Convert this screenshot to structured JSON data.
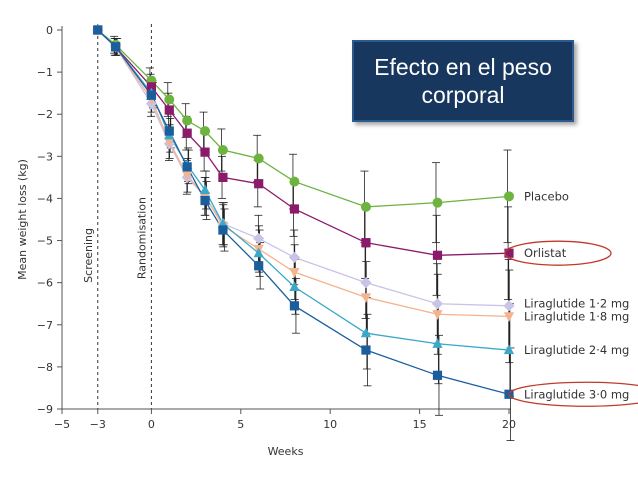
{
  "chart_data": {
    "type": "line",
    "title": "Efecto en el peso corporal",
    "xlabel": "Weeks",
    "ylabel": "Mean weight loss (kg)",
    "xlim": [
      -5,
      20
    ],
    "ylim": [
      -9,
      0
    ],
    "x_ticks": [
      -5,
      -3,
      0,
      5,
      10,
      15,
      20
    ],
    "y_ticks": [
      0,
      -1,
      -2,
      -3,
      -4,
      -5,
      -6,
      -7,
      -8,
      -9
    ],
    "phase_labels": [
      {
        "label": "Screening",
        "x": -3
      },
      {
        "label": "Randomisation",
        "x": 0
      }
    ],
    "highlighted_series": [
      "Orlistat",
      "Liraglutide 3·0 mg"
    ],
    "series": [
      {
        "name": "Placebo",
        "color": "#6cb33f",
        "marker": "circle",
        "x": [
          -3,
          -2,
          0,
          1,
          2,
          3,
          4,
          6,
          8,
          12,
          16,
          20
        ],
        "y": [
          0,
          -0.35,
          -1.2,
          -1.65,
          -2.15,
          -2.4,
          -2.85,
          -3.05,
          -3.6,
          -4.2,
          -4.1,
          -3.95
        ]
      },
      {
        "name": "Orlistat",
        "color": "#8b1a6b",
        "marker": "square",
        "x": [
          -3,
          -2,
          0,
          1,
          2,
          3,
          4,
          6,
          8,
          12,
          16,
          20
        ],
        "y": [
          0,
          -0.4,
          -1.35,
          -1.9,
          -2.45,
          -2.9,
          -3.5,
          -3.65,
          -4.25,
          -5.05,
          -5.35,
          -5.3
        ]
      },
      {
        "name": "Liraglutide 1·2 mg",
        "color": "#c9c3e6",
        "marker": "diamond",
        "x": [
          -3,
          -2,
          0,
          1,
          2,
          3,
          4,
          6,
          8,
          12,
          16,
          20
        ],
        "y": [
          0,
          -0.4,
          -1.75,
          -2.7,
          -3.5,
          -3.95,
          -4.6,
          -4.95,
          -5.4,
          -6.0,
          -6.5,
          -6.55
        ]
      },
      {
        "name": "Liraglutide 1·8 mg",
        "color": "#f3b48e",
        "marker": "triangle-down",
        "x": [
          -3,
          -2,
          0,
          1,
          2,
          3,
          4,
          6,
          8,
          12,
          16,
          20
        ],
        "y": [
          0,
          -0.4,
          -1.65,
          -2.65,
          -3.45,
          -3.95,
          -4.65,
          -5.2,
          -5.75,
          -6.35,
          -6.75,
          -6.8
        ]
      },
      {
        "name": "Liraglutide 2·4 mg",
        "color": "#3ba8c8",
        "marker": "triangle-up",
        "x": [
          -3,
          -2,
          0,
          1,
          2,
          3,
          4,
          6,
          8,
          12,
          16,
          20
        ],
        "y": [
          0,
          -0.4,
          -1.5,
          -2.5,
          -3.2,
          -3.8,
          -4.6,
          -5.3,
          -6.1,
          -7.2,
          -7.45,
          -7.6
        ]
      },
      {
        "name": "Liraglutide 3·0 mg",
        "color": "#1a5e9e",
        "marker": "square",
        "x": [
          -3,
          -2,
          0,
          1,
          2,
          3,
          4,
          6,
          8,
          12,
          16,
          20
        ],
        "y": [
          0,
          -0.4,
          -1.55,
          -2.4,
          -3.25,
          -4.05,
          -4.75,
          -5.6,
          -6.55,
          -7.6,
          -8.2,
          -8.65
        ]
      }
    ],
    "error_bar_width_kg": [
      0,
      0.2,
      0.3,
      0.4,
      0.4,
      0.45,
      0.5,
      0.55,
      0.65,
      0.85,
      0.95,
      1.1
    ]
  }
}
